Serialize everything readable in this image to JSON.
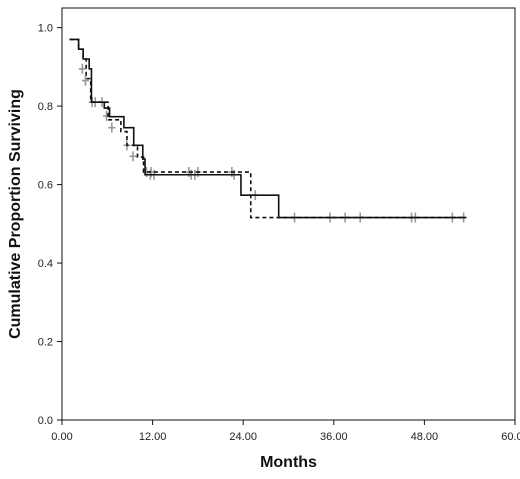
{
  "chart_data": {
    "type": "line",
    "title": "",
    "xlabel": "Months",
    "ylabel": "Cumulative Proportion Surviving",
    "xlim": [
      0,
      60
    ],
    "ylim": [
      0,
      1.05
    ],
    "x_ticks": [
      0,
      12,
      24,
      36,
      48,
      60
    ],
    "x_tick_labels": [
      "0.00",
      "12.00",
      "24.00",
      "36.00",
      "48.00",
      "60.00"
    ],
    "y_ticks": [
      0,
      0.2,
      0.4,
      0.6,
      0.8,
      1.0
    ],
    "y_tick_labels": [
      "0.0",
      "0.2",
      "0.4",
      "0.6",
      "0.8",
      "1.0"
    ],
    "grid": false,
    "censor_color": "#9a9a9a",
    "series": [
      {
        "style": "solid",
        "color": "#111111",
        "steps": [
          [
            1.0,
            0.97
          ],
          [
            2.2,
            0.945
          ],
          [
            2.8,
            0.92
          ],
          [
            3.6,
            0.895
          ],
          [
            3.9,
            0.81
          ],
          [
            5.6,
            0.795
          ],
          [
            6.3,
            0.773
          ],
          [
            8.2,
            0.745
          ],
          [
            9.5,
            0.7
          ],
          [
            10.7,
            0.665
          ],
          [
            11.0,
            0.625
          ],
          [
            23.7,
            0.573
          ],
          [
            28.7,
            0.516
          ],
          [
            53.5,
            0.516
          ]
        ],
        "censored": [
          [
            11.7,
            0.625
          ],
          [
            12.2,
            0.625
          ],
          [
            17.1,
            0.625
          ],
          [
            17.6,
            0.625
          ],
          [
            22.8,
            0.625
          ],
          [
            25.6,
            0.573
          ]
        ]
      },
      {
        "style": "dashed",
        "color": "#111111",
        "steps": [
          [
            1.0,
            0.97
          ],
          [
            2.2,
            0.945
          ],
          [
            2.8,
            0.92
          ],
          [
            3.2,
            0.87
          ],
          [
            3.8,
            0.81
          ],
          [
            6.1,
            0.765
          ],
          [
            7.8,
            0.735
          ],
          [
            8.6,
            0.7
          ],
          [
            10.0,
            0.67
          ],
          [
            10.8,
            0.632
          ],
          [
            25.0,
            0.516
          ],
          [
            53.5,
            0.516
          ]
        ],
        "censored": [
          [
            2.7,
            0.895
          ],
          [
            3.1,
            0.865
          ],
          [
            4.0,
            0.81
          ],
          [
            4.4,
            0.81
          ],
          [
            5.3,
            0.81
          ],
          [
            5.9,
            0.775
          ],
          [
            6.6,
            0.745
          ],
          [
            8.6,
            0.7
          ],
          [
            9.4,
            0.672
          ],
          [
            11.2,
            0.632
          ],
          [
            11.8,
            0.632
          ],
          [
            16.8,
            0.632
          ],
          [
            18.0,
            0.632
          ],
          [
            22.5,
            0.632
          ],
          [
            30.8,
            0.516
          ],
          [
            35.5,
            0.516
          ],
          [
            37.5,
            0.516
          ],
          [
            39.5,
            0.516
          ],
          [
            46.3,
            0.516
          ],
          [
            46.8,
            0.516
          ],
          [
            51.7,
            0.516
          ],
          [
            53.2,
            0.516
          ]
        ]
      }
    ]
  }
}
